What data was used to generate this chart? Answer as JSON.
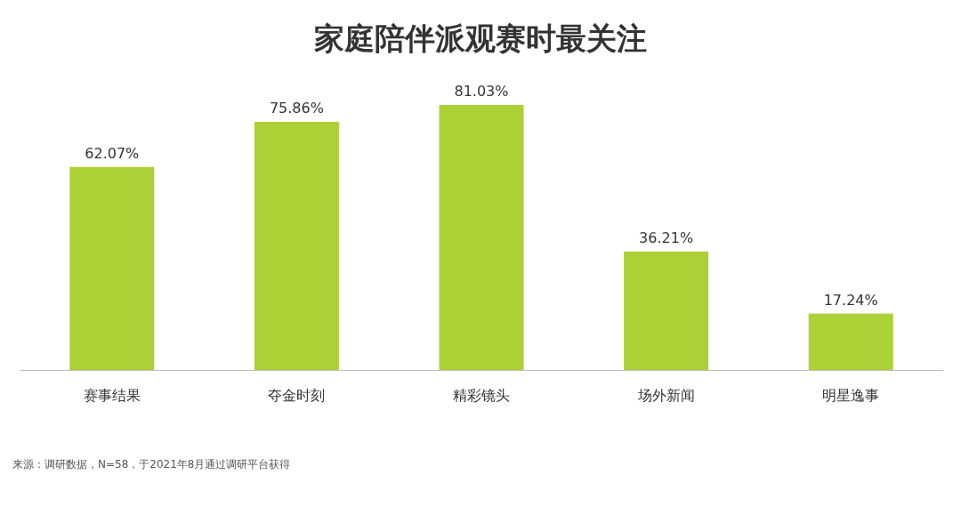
{
  "chart_data": {
    "type": "bar",
    "title": "家庭陪伴派观赛时最关注",
    "categories": [
      "赛事结果",
      "夺金时刻",
      "精彩镜头",
      "场外新闻",
      "明星逸事"
    ],
    "values": [
      62.07,
      75.86,
      81.03,
      36.21,
      17.24
    ],
    "value_labels": [
      "62.07%",
      "75.86%",
      "81.03%",
      "36.21%",
      "17.24%"
    ],
    "color": "#acd136",
    "annotations": [
      "来源：调研数据，N=58，于2021年8月通过调研平台获得"
    ]
  }
}
